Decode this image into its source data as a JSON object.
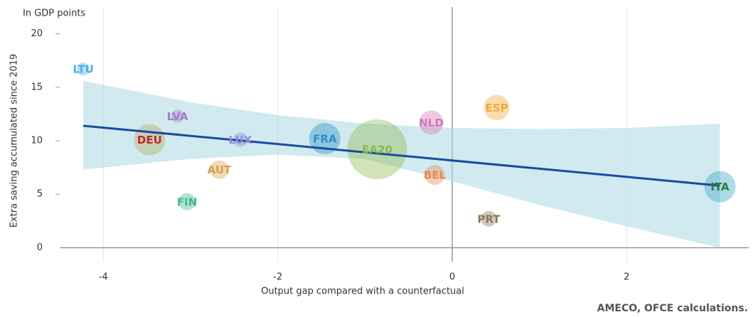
{
  "chart_data": {
    "type": "bubble",
    "annotation": "In GDP points",
    "ylabel": "Extra saving accumulated since 2019",
    "xlabel": "Output gap compared with a counterfactual",
    "source": "AMECO, OFCE calculations.",
    "xlim": [
      -4.5,
      3.4
    ],
    "ylim": [
      -1.3,
      22.5
    ],
    "xticks": [
      -4,
      -2,
      0,
      2
    ],
    "yticks": [
      0,
      5,
      10,
      15,
      20
    ],
    "grid": true,
    "points": [
      {
        "name": "LTU",
        "color": "#4aaee3",
        "x": -4.23,
        "y": 16.7,
        "size": 9
      },
      {
        "name": "LVA",
        "color": "#a57bc4",
        "x": -3.15,
        "y": 12.3,
        "size": 9
      },
      {
        "name": "DEU",
        "color": "#b5a95a",
        "label_color": "#c0272d",
        "x": -3.47,
        "y": 10.1,
        "size": 22
      },
      {
        "name": "LUX",
        "color": "#8c8fd6",
        "x": -2.43,
        "y": 10.1,
        "size": 10
      },
      {
        "name": "FRA",
        "color": "#2b8fc4",
        "x": -1.46,
        "y": 10.2,
        "size": 22
      },
      {
        "name": "EA20",
        "color": "#8cb84a",
        "x": -0.86,
        "y": 9.2,
        "size": 42
      },
      {
        "name": "AUT",
        "color": "#d7a04c",
        "x": -2.67,
        "y": 7.3,
        "size": 13
      },
      {
        "name": "FIN",
        "color": "#3fba8a",
        "x": -3.04,
        "y": 4.3,
        "size": 12
      },
      {
        "name": "NLD",
        "color": "#d476b8",
        "x": -0.24,
        "y": 11.7,
        "size": 17
      },
      {
        "name": "ESP",
        "color": "#f0aa3a",
        "x": 0.51,
        "y": 13.1,
        "size": 18
      },
      {
        "name": "BEL",
        "color": "#e88a52",
        "x": -0.2,
        "y": 6.8,
        "size": 14
      },
      {
        "name": "PRT",
        "color": "#8a7a55",
        "x": 0.42,
        "y": 2.7,
        "size": 11
      },
      {
        "name": "ITA",
        "color": "#36a2c4",
        "label_color": "#2a7a3c",
        "x": 3.07,
        "y": 5.7,
        "size": 22
      }
    ],
    "trend": {
      "color": "#1a4a9c",
      "x": [
        -4.23,
        3.07
      ],
      "y": [
        11.4,
        5.8
      ]
    },
    "band": {
      "color": "#a9d8e3",
      "x": [
        -4.23,
        -3,
        -2,
        -1,
        0,
        1,
        2,
        3.07
      ],
      "upper": [
        15.6,
        13.6,
        12.4,
        11.6,
        11.2,
        11.1,
        11.2,
        11.6
      ],
      "lower": [
        7.3,
        8.3,
        8.7,
        8.3,
        6.2,
        4.0,
        2.0,
        0
      ]
    }
  }
}
